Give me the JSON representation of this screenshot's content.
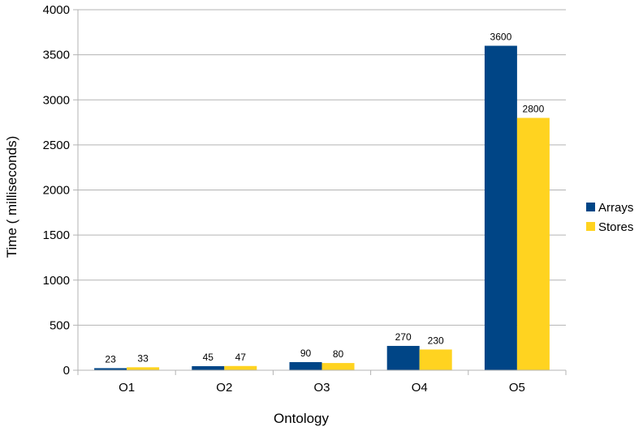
{
  "chart_data": {
    "type": "bar",
    "title": "",
    "xlabel": "Ontology",
    "ylabel": "Time ( milliseconds)",
    "categories": [
      "O1",
      "O2",
      "O3",
      "O4",
      "O5"
    ],
    "series": [
      {
        "name": "Arrays",
        "values": [
          23,
          45,
          90,
          270,
          3600
        ],
        "color": "#004586"
      },
      {
        "name": "Stores",
        "values": [
          33,
          47,
          80,
          230,
          2800
        ],
        "color": "#ffd320"
      }
    ],
    "ylim": [
      0,
      4000
    ],
    "yticks": [
      0,
      500,
      1000,
      1500,
      2000,
      2500,
      3000,
      3500,
      4000
    ],
    "grid": true,
    "legend_position": "right"
  }
}
